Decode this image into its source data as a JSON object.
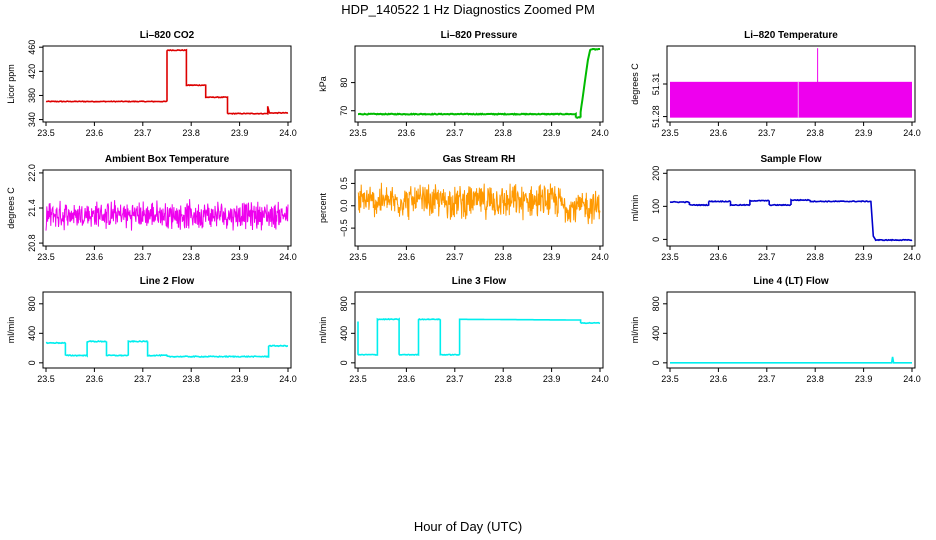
{
  "figure": {
    "title": "HDP_140522  1 Hz Diagnostics Zoomed PM",
    "xlabel": "Hour of Day (UTC)"
  },
  "chart_data": [
    {
      "type": "line",
      "title": "Li–820 CO2",
      "ylabel": "Licor ppm",
      "color": "#dd0000",
      "xlim": [
        23.5,
        24.0
      ],
      "ylim": [
        336,
        462
      ],
      "xticks": [
        "23.5",
        "23.6",
        "23.7",
        "23.8",
        "23.9",
        "24.0"
      ],
      "yticks": [
        340,
        380,
        420,
        460
      ],
      "yticklabels": [
        "340",
        "380",
        "420",
        "460"
      ],
      "series": [
        {
          "name": "Li-820 CO2",
          "noise": 0.6,
          "x": [
            23.5,
            23.75,
            23.75,
            23.79,
            23.79,
            23.83,
            23.83,
            23.875,
            23.875,
            23.958,
            23.958,
            23.962,
            23.962,
            24.0
          ],
          "y": [
            370,
            370,
            455,
            455,
            397,
            397,
            377,
            377,
            350,
            350,
            362,
            350,
            351,
            351
          ]
        }
      ]
    },
    {
      "type": "line",
      "title": "Li–820 Pressure",
      "ylabel": "kPa",
      "color": "#00bb00",
      "xlim": [
        23.5,
        24.0
      ],
      "ylim": [
        66,
        93
      ],
      "xticks": [
        "23.5",
        "23.6",
        "23.7",
        "23.8",
        "23.9",
        "24.0"
      ],
      "yticks": [
        70,
        80
      ],
      "yticklabels": [
        "70",
        "80"
      ],
      "series": [
        {
          "name": "Li-820 Pressure",
          "noise": 0.15,
          "x": [
            23.5,
            23.95,
            23.95,
            23.96,
            23.96,
            23.97,
            23.975,
            23.98,
            24.0
          ],
          "y": [
            68.8,
            68.8,
            67.6,
            67.6,
            69.5,
            82.0,
            88.0,
            91.8,
            91.8
          ]
        }
      ]
    },
    {
      "type": "area",
      "title": "Li–820 Temperature",
      "ylabel": "degrees C",
      "color": "#ee00ee",
      "xlim": [
        23.5,
        24.0
      ],
      "ylim": [
        51.275,
        51.345
      ],
      "xticks": [
        "23.5",
        "23.6",
        "23.7",
        "23.8",
        "23.9",
        "24.0"
      ],
      "yticks": [
        51.28,
        51.31
      ],
      "yticklabels": [
        "51.28",
        "51.31"
      ],
      "series": [
        {
          "name": "Li-820 Temperature",
          "band": [
            51.279,
            51.312
          ],
          "spikes": [
            {
              "x": 23.805,
              "y": 51.343
            },
            {
              "x": 23.85,
              "y": 51.293
            }
          ]
        }
      ]
    },
    {
      "type": "line",
      "title": "Ambient Box Temperature",
      "ylabel": "degrees C",
      "color": "#ee00ee",
      "xlim": [
        23.5,
        24.0
      ],
      "ylim": [
        20.75,
        22.05
      ],
      "xticks": [
        "23.5",
        "23.6",
        "23.7",
        "23.8",
        "23.9",
        "24.0"
      ],
      "yticks": [
        20.8,
        21.4,
        22.0
      ],
      "yticklabels": [
        "20.8",
        "21.4",
        "22.0"
      ],
      "series": [
        {
          "name": "Ambient Box Temperature",
          "center": 21.28,
          "amp": 0.28,
          "x": [
            23.5,
            24.0
          ],
          "y": [
            21.28,
            21.28
          ]
        }
      ]
    },
    {
      "type": "line",
      "title": "Gas Stream RH",
      "ylabel": "percent",
      "color": "#ff9900",
      "xlim": [
        23.5,
        24.0
      ],
      "ylim": [
        -0.9,
        0.8
      ],
      "xticks": [
        "23.5",
        "23.6",
        "23.7",
        "23.8",
        "23.9",
        "24.0"
      ],
      "yticks": [
        -0.5,
        0.0,
        0.5
      ],
      "yticklabels": [
        "−0.5",
        "0.0",
        "0.5"
      ],
      "series": [
        {
          "name": "Gas Stream RH",
          "center": 0.1,
          "amp": 0.45,
          "x": [
            23.5,
            24.0
          ],
          "y": [
            0.1,
            0.1
          ]
        }
      ]
    },
    {
      "type": "line",
      "title": "Sample Flow",
      "ylabel": "ml/min",
      "color": "#0000cc",
      "xlim": [
        23.5,
        24.0
      ],
      "ylim": [
        -20,
        210
      ],
      "xticks": [
        "23.5",
        "23.6",
        "23.7",
        "23.8",
        "23.9",
        "24.0"
      ],
      "yticks": [
        0,
        100,
        200
      ],
      "yticklabels": [
        "0",
        "100",
        "200"
      ],
      "series": [
        {
          "name": "Sample Flow",
          "noise": 1.2,
          "x": [
            23.5,
            23.54,
            23.54,
            23.58,
            23.58,
            23.625,
            23.625,
            23.665,
            23.665,
            23.705,
            23.705,
            23.75,
            23.75,
            23.79,
            23.79,
            23.915,
            23.92,
            23.925,
            24.0
          ],
          "y": [
            113,
            113,
            104,
            104,
            115,
            115,
            104,
            104,
            117,
            117,
            104,
            104,
            119,
            119,
            115,
            115,
            10,
            -2,
            -2
          ]
        }
      ]
    },
    {
      "type": "line",
      "title": "Line 2 Flow",
      "ylabel": "ml/min",
      "color": "#00eeee",
      "xlim": [
        23.5,
        24.0
      ],
      "ylim": [
        -70,
        960
      ],
      "xticks": [
        "23.5",
        "23.6",
        "23.7",
        "23.8",
        "23.9",
        "24.0"
      ],
      "yticks": [
        0,
        400,
        800
      ],
      "yticklabels": [
        "0",
        "400",
        "800"
      ],
      "series": [
        {
          "name": "Line 2 Flow",
          "noise": 6,
          "x": [
            23.5,
            23.54,
            23.54,
            23.585,
            23.585,
            23.625,
            23.625,
            23.67,
            23.67,
            23.71,
            23.71,
            23.75,
            23.75,
            23.96,
            23.96,
            24.0
          ],
          "y": [
            270,
            270,
            100,
            100,
            290,
            290,
            100,
            100,
            290,
            290,
            100,
            100,
            85,
            85,
            230,
            230
          ]
        }
      ]
    },
    {
      "type": "line",
      "title": "Line 3 Flow",
      "ylabel": "ml/min",
      "color": "#00eeee",
      "xlim": [
        23.5,
        24.0
      ],
      "ylim": [
        -70,
        960
      ],
      "xticks": [
        "23.5",
        "23.6",
        "23.7",
        "23.8",
        "23.9",
        "24.0"
      ],
      "yticks": [
        0,
        400,
        800
      ],
      "yticklabels": [
        "0",
        "400",
        "800"
      ],
      "series": [
        {
          "name": "Line 3 Flow",
          "noise": 5,
          "x": [
            23.5,
            23.5,
            23.54,
            23.54,
            23.585,
            23.585,
            23.625,
            23.625,
            23.67,
            23.67,
            23.71,
            23.71,
            23.96,
            23.96,
            24.0
          ],
          "y": [
            560,
            110,
            110,
            590,
            590,
            110,
            110,
            590,
            590,
            110,
            110,
            590,
            580,
            540,
            540
          ]
        }
      ]
    },
    {
      "type": "line",
      "title": "Line 4 (LT) Flow",
      "ylabel": "ml/min",
      "color": "#00eeee",
      "xlim": [
        23.5,
        24.0
      ],
      "ylim": [
        -70,
        960
      ],
      "xticks": [
        "23.5",
        "23.6",
        "23.7",
        "23.8",
        "23.9",
        "24.0"
      ],
      "yticks": [
        0,
        400,
        800
      ],
      "yticklabels": [
        "0",
        "400",
        "800"
      ],
      "series": [
        {
          "name": "Line 4 (LT) Flow",
          "noise": 0,
          "x": [
            23.5,
            23.958,
            23.959,
            23.96,
            23.961,
            23.962,
            24.0
          ],
          "y": [
            0,
            0,
            50,
            80,
            40,
            0,
            0
          ]
        }
      ]
    }
  ]
}
